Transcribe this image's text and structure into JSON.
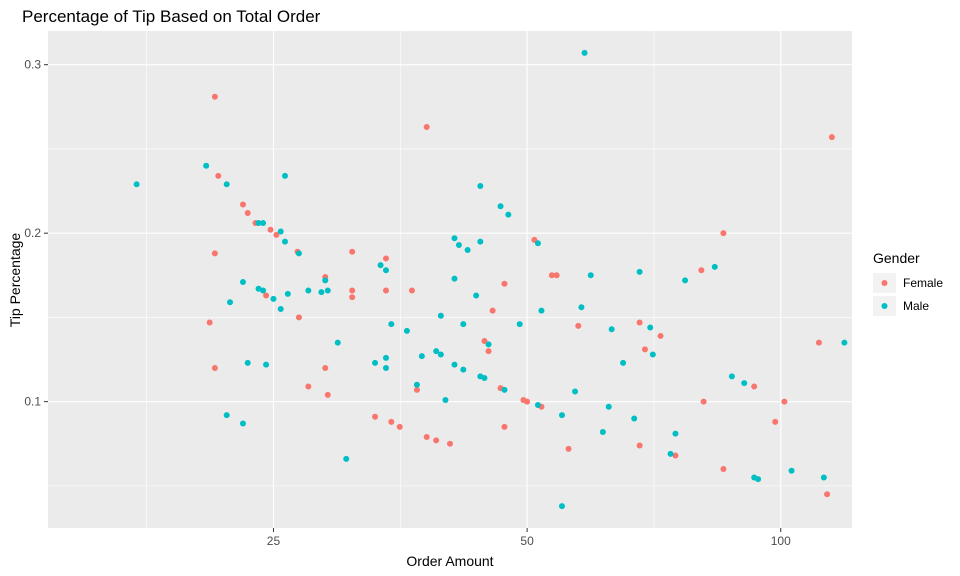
{
  "chart_data": {
    "type": "scatter",
    "title": "Percentage of Tip Based on Total Order",
    "xlabel": "Order Amount",
    "ylabel": "Tip Percentage",
    "xlim": [
      13.5,
      121.5
    ],
    "ylim": [
      0.025,
      0.32
    ],
    "x_ticks": [
      25,
      50,
      100
    ],
    "x_tick_labels": [
      "25",
      "50",
      "100"
    ],
    "y_ticks": [
      0.1,
      0.2,
      0.3
    ],
    "y_tick_labels": [
      "0.1",
      "0.2",
      "0.3"
    ],
    "x_scale": "log10",
    "grid": true,
    "legend": {
      "title": "Gender",
      "position": "right"
    },
    "series": [
      {
        "name": "Female",
        "color": "#F8766D",
        "points": [
          [
            21.3,
            0.281
          ],
          [
            38.0,
            0.263
          ],
          [
            115.0,
            0.257
          ],
          [
            21.5,
            0.234
          ],
          [
            23.0,
            0.217
          ],
          [
            23.3,
            0.212
          ],
          [
            23.8,
            0.206
          ],
          [
            24.8,
            0.202
          ],
          [
            25.2,
            0.199
          ],
          [
            85.5,
            0.2
          ],
          [
            21.3,
            0.188
          ],
          [
            26.7,
            0.189
          ],
          [
            31.0,
            0.189
          ],
          [
            34.0,
            0.185
          ],
          [
            51.0,
            0.196
          ],
          [
            80.5,
            0.178
          ],
          [
            28.8,
            0.174
          ],
          [
            53.5,
            0.175
          ],
          [
            54.2,
            0.175
          ],
          [
            31.0,
            0.166
          ],
          [
            34.0,
            0.166
          ],
          [
            36.5,
            0.166
          ],
          [
            47.0,
            0.17
          ],
          [
            24.5,
            0.163
          ],
          [
            31.0,
            0.162
          ],
          [
            45.5,
            0.154
          ],
          [
            21.0,
            0.147
          ],
          [
            26.8,
            0.15
          ],
          [
            57.5,
            0.145
          ],
          [
            68.0,
            0.147
          ],
          [
            72.0,
            0.139
          ],
          [
            111.0,
            0.135
          ],
          [
            44.5,
            0.136
          ],
          [
            45.0,
            0.13
          ],
          [
            69.0,
            0.131
          ],
          [
            21.3,
            0.12
          ],
          [
            28.8,
            0.12
          ],
          [
            27.5,
            0.109
          ],
          [
            37.0,
            0.107
          ],
          [
            29.0,
            0.104
          ],
          [
            46.5,
            0.108
          ],
          [
            49.5,
            0.101
          ],
          [
            50.0,
            0.1
          ],
          [
            52.0,
            0.097
          ],
          [
            81.0,
            0.1
          ],
          [
            93.0,
            0.109
          ],
          [
            101.0,
            0.1
          ],
          [
            33.0,
            0.091
          ],
          [
            34.5,
            0.088
          ],
          [
            35.3,
            0.085
          ],
          [
            47.0,
            0.085
          ],
          [
            38.0,
            0.079
          ],
          [
            39.0,
            0.077
          ],
          [
            40.5,
            0.075
          ],
          [
            56.0,
            0.072
          ],
          [
            68.0,
            0.074
          ],
          [
            75.0,
            0.068
          ],
          [
            98.5,
            0.088
          ],
          [
            85.5,
            0.06
          ],
          [
            113.5,
            0.045
          ]
        ]
      },
      {
        "name": "Male",
        "color": "#00BFC4",
        "points": [
          [
            58.5,
            0.307
          ],
          [
            20.8,
            0.24
          ],
          [
            25.8,
            0.234
          ],
          [
            17.2,
            0.229
          ],
          [
            22.0,
            0.229
          ],
          [
            44.0,
            0.228
          ],
          [
            46.5,
            0.216
          ],
          [
            47.5,
            0.211
          ],
          [
            24.0,
            0.206
          ],
          [
            24.3,
            0.206
          ],
          [
            25.5,
            0.201
          ],
          [
            25.8,
            0.195
          ],
          [
            41.0,
            0.197
          ],
          [
            41.5,
            0.193
          ],
          [
            42.5,
            0.19
          ],
          [
            44.0,
            0.195
          ],
          [
            51.5,
            0.194
          ],
          [
            26.8,
            0.188
          ],
          [
            33.5,
            0.181
          ],
          [
            34.0,
            0.178
          ],
          [
            59.5,
            0.175
          ],
          [
            68.0,
            0.177
          ],
          [
            77.0,
            0.172
          ],
          [
            83.5,
            0.18
          ],
          [
            23.0,
            0.171
          ],
          [
            24.0,
            0.167
          ],
          [
            24.3,
            0.166
          ],
          [
            25.0,
            0.161
          ],
          [
            26.0,
            0.164
          ],
          [
            27.5,
            0.166
          ],
          [
            28.5,
            0.165
          ],
          [
            29.0,
            0.166
          ],
          [
            28.8,
            0.172
          ],
          [
            41.0,
            0.173
          ],
          [
            42.0,
            0.146
          ],
          [
            43.5,
            0.163
          ],
          [
            22.2,
            0.159
          ],
          [
            25.5,
            0.155
          ],
          [
            34.5,
            0.146
          ],
          [
            36.0,
            0.142
          ],
          [
            39.5,
            0.151
          ],
          [
            49.0,
            0.146
          ],
          [
            52.0,
            0.154
          ],
          [
            58.0,
            0.156
          ],
          [
            63.0,
            0.143
          ],
          [
            70.0,
            0.144
          ],
          [
            119.0,
            0.135
          ],
          [
            29.8,
            0.135
          ],
          [
            33.0,
            0.123
          ],
          [
            34.0,
            0.126
          ],
          [
            37.5,
            0.127
          ],
          [
            39.0,
            0.13
          ],
          [
            39.5,
            0.128
          ],
          [
            41.0,
            0.122
          ],
          [
            42.0,
            0.119
          ],
          [
            44.0,
            0.115
          ],
          [
            45.0,
            0.134
          ],
          [
            65.0,
            0.123
          ],
          [
            70.5,
            0.128
          ],
          [
            23.3,
            0.123
          ],
          [
            24.5,
            0.122
          ],
          [
            34.0,
            0.12
          ],
          [
            37.0,
            0.11
          ],
          [
            40.0,
            0.101
          ],
          [
            44.5,
            0.114
          ],
          [
            47.0,
            0.107
          ],
          [
            57.0,
            0.106
          ],
          [
            87.5,
            0.115
          ],
          [
            90.5,
            0.111
          ],
          [
            22.0,
            0.092
          ],
          [
            23.0,
            0.087
          ],
          [
            30.5,
            0.066
          ],
          [
            55.0,
            0.092
          ],
          [
            51.5,
            0.098
          ],
          [
            61.5,
            0.082
          ],
          [
            62.5,
            0.097
          ],
          [
            67.0,
            0.09
          ],
          [
            75.0,
            0.081
          ],
          [
            74.0,
            0.069
          ],
          [
            55.0,
            0.038
          ],
          [
            93.0,
            0.055
          ],
          [
            94.0,
            0.054
          ],
          [
            103.0,
            0.059
          ],
          [
            112.5,
            0.055
          ]
        ]
      }
    ]
  }
}
